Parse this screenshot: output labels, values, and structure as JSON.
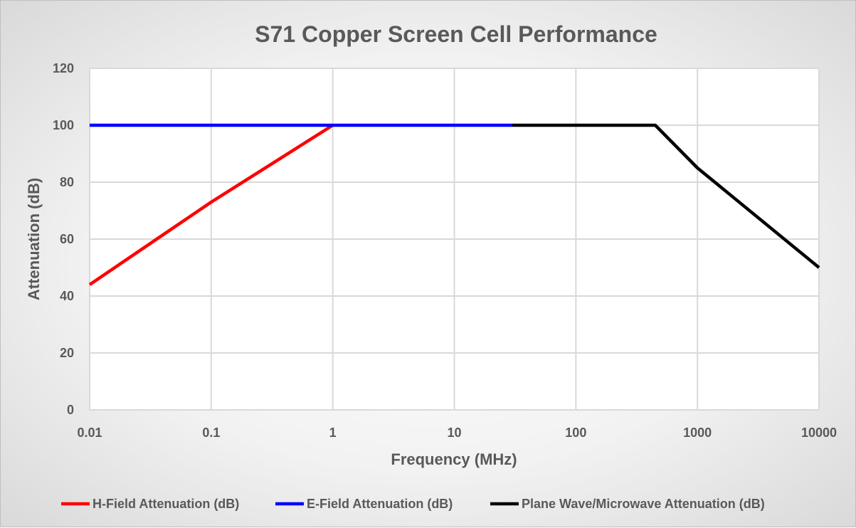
{
  "chart_data": {
    "type": "line",
    "title": "S71 Copper Screen Cell Performance",
    "xlabel": "Frequency (MHz)",
    "ylabel": "Attenuation (dB)",
    "xscale": "log",
    "xlim": [
      0.01,
      10000
    ],
    "ylim": [
      0,
      120
    ],
    "xticks": [
      "0.01",
      "0.1",
      "1",
      "10",
      "100",
      "1000",
      "10000"
    ],
    "xtick_values": [
      0.01,
      0.1,
      1,
      10,
      100,
      1000,
      10000
    ],
    "yticks": [
      "0",
      "20",
      "40",
      "60",
      "80",
      "100",
      "120"
    ],
    "ytick_values": [
      0,
      20,
      40,
      60,
      80,
      100,
      120
    ],
    "grid": true,
    "legend_position": "bottom",
    "series": [
      {
        "name": "H-Field Attenuation (dB)",
        "color": "#ff0000",
        "x": [
          0.01,
          0.1,
          1
        ],
        "y": [
          44,
          73,
          100
        ]
      },
      {
        "name": "E-Field Attenuation (dB)",
        "color": "#0000ff",
        "x": [
          0.01,
          30
        ],
        "y": [
          100,
          100
        ]
      },
      {
        "name": "Plane Wave/Microwave Attenuation (dB)",
        "color": "#000000",
        "x": [
          30,
          450,
          1000,
          10000
        ],
        "y": [
          100,
          100,
          85,
          50
        ]
      }
    ]
  }
}
